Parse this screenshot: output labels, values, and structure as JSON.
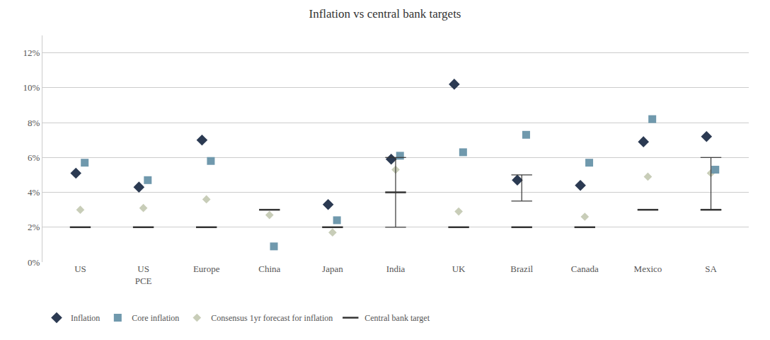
{
  "chart_data": {
    "type": "scatter",
    "title": "Inflation vs central bank targets",
    "categories": [
      "US",
      "US\nPCE",
      "Europe",
      "China",
      "Japan",
      "India",
      "UK",
      "Brazil",
      "Canada",
      "Mexico",
      "SA"
    ],
    "series": [
      {
        "name": "Inflation",
        "color": "#2b3a52",
        "marker": "diamond",
        "values": [
          0.051,
          0.043,
          0.07,
          null,
          0.033,
          0.059,
          0.102,
          0.047,
          0.044,
          0.069,
          0.072
        ]
      },
      {
        "name": "Core inflation",
        "color": "#7099ad",
        "marker": "square",
        "values": [
          0.057,
          0.047,
          0.058,
          0.009,
          0.024,
          0.061,
          0.063,
          0.073,
          0.057,
          0.082,
          0.053
        ]
      },
      {
        "name": "Consensus 1yr forecast for inflation",
        "color": "#c8cdb8",
        "marker": "diamond",
        "values": [
          0.03,
          0.031,
          0.036,
          0.027,
          0.017,
          0.053,
          0.029,
          null,
          0.026,
          0.049,
          0.051
        ]
      },
      {
        "name": "Central bank target",
        "color": "#333333",
        "marker": "line",
        "values": [
          0.02,
          0.02,
          0.02,
          0.03,
          0.02,
          0.04,
          0.02,
          0.02,
          0.02,
          0.03,
          0.03
        ],
        "range_low": [
          null,
          null,
          null,
          null,
          null,
          0.02,
          null,
          0.035,
          null,
          null,
          0.03
        ],
        "range_high": [
          null,
          null,
          null,
          null,
          null,
          0.06,
          null,
          0.05,
          null,
          null,
          0.06
        ]
      }
    ],
    "ylim": [
      0,
      0.13
    ],
    "yticks": [
      {
        "value": 0.0,
        "label": "0%"
      },
      {
        "value": 0.02,
        "label": "2%"
      },
      {
        "value": 0.04,
        "label": "4%"
      },
      {
        "value": 0.06,
        "label": "6%"
      },
      {
        "value": 0.08,
        "label": "8%"
      },
      {
        "value": 0.1,
        "label": "10%"
      },
      {
        "value": 0.12,
        "label": "12%"
      }
    ],
    "grid": true,
    "legend": "lower left"
  }
}
